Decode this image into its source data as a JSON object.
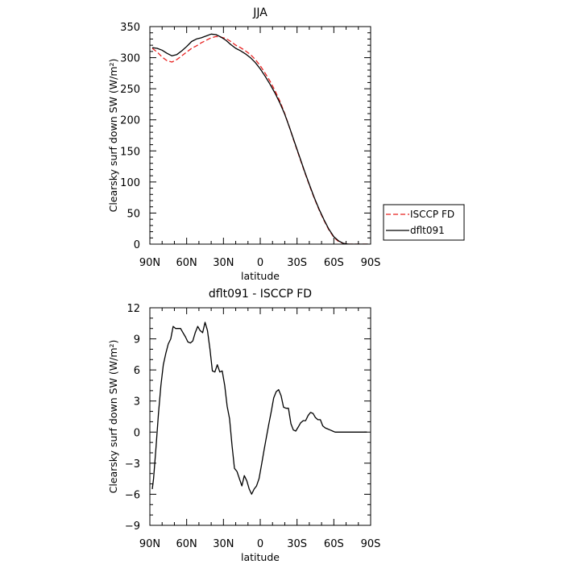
{
  "chart_data": [
    {
      "type": "line",
      "title": "JJA",
      "xlabel": "latitude",
      "ylabel": "Clearsky surf down SW (W/m²)",
      "xlim": [
        90,
        -90
      ],
      "ylim": [
        0,
        350
      ],
      "x_ticks": [
        90,
        60,
        30,
        0,
        -30,
        -60,
        -90
      ],
      "x_tick_labels": [
        "90N",
        "60N",
        "30N",
        "0",
        "30S",
        "60S",
        "90S"
      ],
      "y_ticks": [
        0,
        50,
        100,
        150,
        200,
        250,
        300,
        350
      ],
      "y_tick_labels": [
        "0",
        "50",
        "100",
        "150",
        "200",
        "250",
        "300",
        "350"
      ],
      "grid": false,
      "legend": "right, outside plot",
      "series": [
        {
          "name": "ISCCP FD",
          "color": "#e8201f",
          "style": "dashed",
          "x": [
            88,
            84,
            80,
            76,
            72,
            68,
            64,
            60,
            56,
            52,
            48,
            44,
            40,
            36,
            32,
            28,
            24,
            20,
            16,
            12,
            8,
            4,
            0,
            -4,
            -8,
            -12,
            -16,
            -20,
            -24,
            -28,
            -32,
            -36,
            -40,
            -44,
            -48,
            -52,
            -56,
            -60,
            -64,
            -68,
            -72,
            -76,
            -80,
            -84,
            -88
          ],
          "y": [
            315,
            309,
            301,
            295,
            293,
            297,
            303,
            309,
            315,
            319,
            324,
            328,
            332,
            334,
            333,
            331,
            326,
            320,
            316,
            311,
            305,
            297,
            287,
            275,
            262,
            247,
            230,
            210,
            187,
            163,
            140,
            117,
            95,
            74,
            55,
            38,
            23,
            11,
            4,
            1,
            0,
            0,
            0,
            0,
            0
          ]
        },
        {
          "name": "dflt091",
          "color": "#000000",
          "style": "solid",
          "x": [
            88,
            84,
            80,
            76,
            72,
            68,
            64,
            60,
            56,
            52,
            48,
            44,
            40,
            36,
            32,
            28,
            24,
            20,
            16,
            12,
            8,
            4,
            0,
            -4,
            -8,
            -12,
            -16,
            -20,
            -24,
            -28,
            -32,
            -36,
            -40,
            -44,
            -48,
            -52,
            -56,
            -60,
            -64,
            -68,
            -72,
            -76,
            -80,
            -84,
            -88
          ],
          "y": [
            316,
            315,
            312,
            307,
            303,
            305,
            311,
            318,
            326,
            330,
            332,
            335,
            338,
            337,
            333,
            328,
            321,
            315,
            311,
            306,
            300,
            292,
            282,
            270,
            257,
            243,
            227,
            209,
            187,
            164,
            141,
            118,
            96,
            75,
            56,
            39,
            24,
            12,
            5,
            1,
            0,
            0,
            0,
            0,
            0
          ]
        }
      ]
    },
    {
      "type": "line",
      "title": "dflt091 - ISCCP FD",
      "xlabel": "latitude",
      "ylabel": "Clearsky surf down SW (W/m²)",
      "xlim": [
        90,
        -90
      ],
      "ylim": [
        -9,
        12
      ],
      "x_ticks": [
        90,
        60,
        30,
        0,
        -30,
        -60,
        -90
      ],
      "x_tick_labels": [
        "90N",
        "60N",
        "30N",
        "0",
        "30S",
        "60S",
        "90S"
      ],
      "y_ticks": [
        -9,
        -6,
        -3,
        0,
        3,
        6,
        9,
        12
      ],
      "y_tick_labels": [
        "−9",
        "−6",
        "−3",
        "0",
        "3",
        "6",
        "9",
        "12"
      ],
      "grid": false,
      "series": [
        {
          "color": "#000000",
          "style": "solid",
          "x": [
            88,
            87,
            85,
            83,
            81,
            79,
            77,
            75,
            73,
            71,
            69,
            67,
            65,
            63,
            61,
            59,
            57,
            55,
            53,
            51,
            49,
            47,
            45,
            43,
            41,
            39,
            37,
            35,
            33,
            31,
            29,
            27,
            25,
            23,
            21,
            19,
            17,
            15,
            13,
            11,
            9,
            7,
            5,
            3,
            1,
            -1,
            -3,
            -5,
            -7,
            -9,
            -11,
            -13,
            -15,
            -17,
            -19,
            -21,
            -23,
            -25,
            -27,
            -29,
            -31,
            -33,
            -35,
            -37,
            -39,
            -41,
            -43,
            -45,
            -47,
            -49,
            -51,
            -53,
            -55,
            -57,
            -59,
            -61,
            -63,
            -65,
            -67,
            -69,
            -71,
            -73,
            -75,
            -77,
            -79,
            -81,
            -83,
            -85,
            -87
          ],
          "y": [
            -5.5,
            -4.5,
            -1.5,
            1.8,
            4.5,
            6.5,
            7.6,
            8.5,
            9.0,
            10.2,
            10.0,
            10.0,
            10.0,
            9.6,
            9.2,
            8.7,
            8.6,
            8.8,
            9.6,
            10.2,
            9.8,
            9.6,
            10.6,
            9.8,
            8.0,
            5.9,
            5.8,
            6.5,
            5.8,
            5.9,
            4.5,
            2.5,
            1.3,
            -1.3,
            -3.5,
            -3.8,
            -4.5,
            -5.2,
            -4.2,
            -4.7,
            -5.5,
            -6.0,
            -5.5,
            -5.2,
            -4.5,
            -3.2,
            -1.8,
            -0.5,
            0.8,
            2.0,
            3.3,
            3.9,
            4.1,
            3.5,
            2.4,
            2.3,
            2.3,
            0.8,
            0.2,
            0.1,
            0.5,
            0.9,
            1.1,
            1.1,
            1.6,
            1.9,
            1.8,
            1.4,
            1.2,
            1.2,
            0.6,
            0.4,
            0.3,
            0.2,
            0.1,
            0.0,
            0.0,
            0.0,
            0.0,
            0.0,
            0.0,
            0.0,
            0.0,
            0.0,
            0.0,
            0.0,
            0.0,
            0.0,
            0.0
          ]
        }
      ]
    }
  ]
}
